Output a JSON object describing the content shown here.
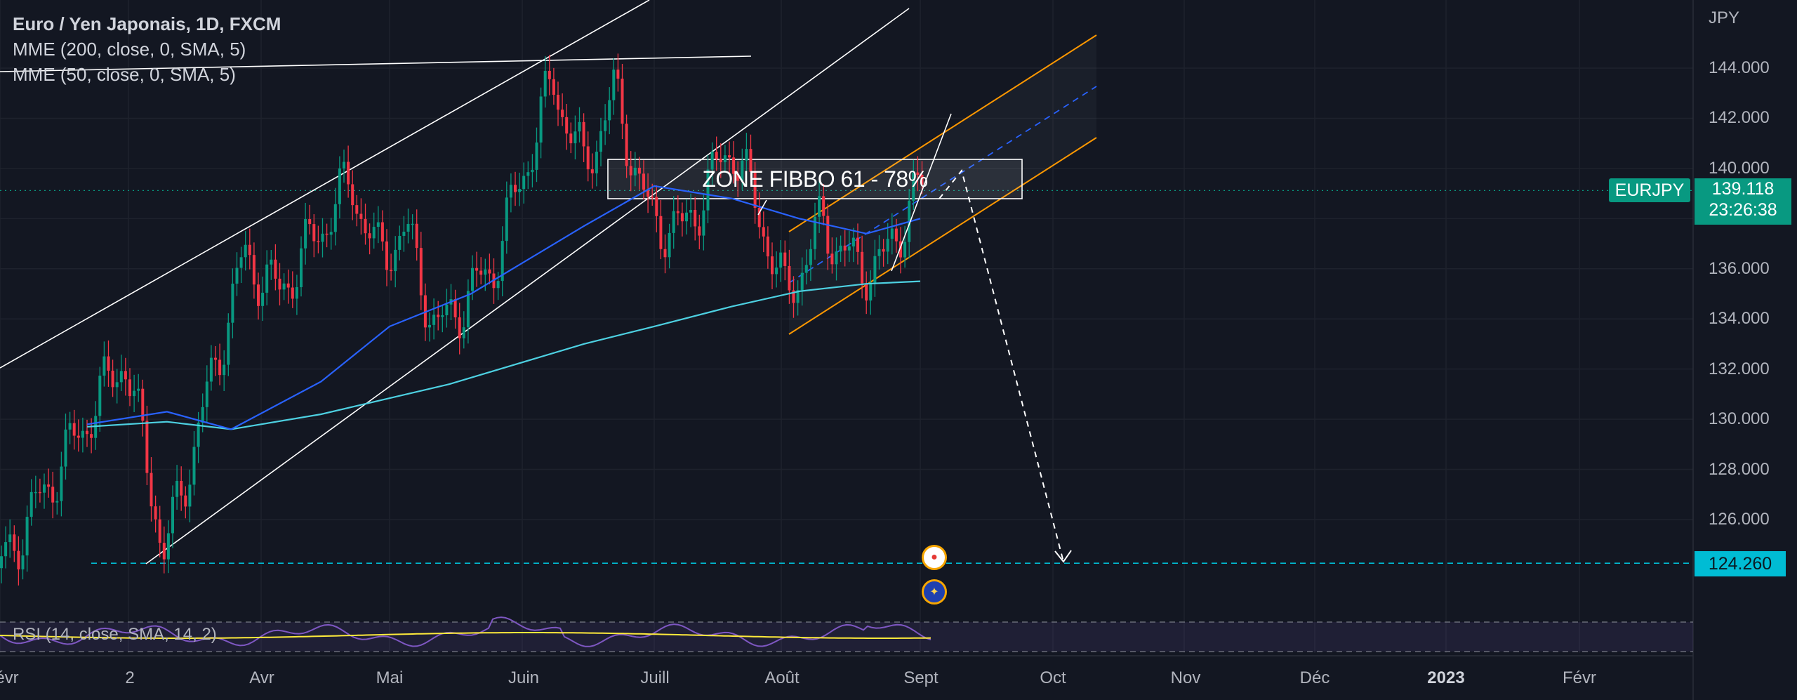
{
  "header": {
    "title": "Euro / Yen Japonais, 1D, FXCM",
    "indicators": [
      "MME (200, close, 0, SMA, 5)",
      "MME (50, close, 0, SMA, 5)"
    ]
  },
  "axis": {
    "unit": "JPY",
    "price_ticks": [
      "144.000",
      "142.000",
      "140.000",
      "138.000",
      "136.000",
      "134.000",
      "132.000",
      "130.000",
      "128.000",
      "126.000"
    ],
    "time_ticks": [
      {
        "label": "évr",
        "bold": false
      },
      {
        "label": "2",
        "bold": false
      },
      {
        "label": "Avr",
        "bold": false
      },
      {
        "label": "Mai",
        "bold": false
      },
      {
        "label": "Juin",
        "bold": false
      },
      {
        "label": "Juill",
        "bold": false
      },
      {
        "label": "Août",
        "bold": false
      },
      {
        "label": "Sept",
        "bold": false
      },
      {
        "label": "Oct",
        "bold": false
      },
      {
        "label": "Nov",
        "bold": false
      },
      {
        "label": "Déc",
        "bold": false
      },
      {
        "label": "2023",
        "bold": true
      },
      {
        "label": "Févr",
        "bold": false
      }
    ]
  },
  "badges": {
    "symbol": "EURJPY",
    "last_price": "139.118",
    "countdown": "23:26:38",
    "target": "124.260"
  },
  "annotation": {
    "zone_text": "ZONE FIBBO 61 - 78%"
  },
  "rsi": {
    "label": "RSI (14, close, SMA, 14, 2)"
  },
  "colors": {
    "background": "#131722",
    "up": "#089981",
    "down": "#f23645",
    "ema50": "#2962ff",
    "ema200": "#4dd0e1",
    "channel": "#ff9800",
    "rsi_line": "#7e57c2",
    "rsi_ma": "#ffeb3b",
    "target": "#00bcd4"
  },
  "chart_data": {
    "type": "line",
    "title": "Euro / Yen Japonais, 1D, FXCM",
    "ylabel": "JPY",
    "ylim": [
      123.5,
      146
    ],
    "last_price": 139.118,
    "target_level": 124.26,
    "zone": {
      "label": "ZONE FIBBO 61 - 78%",
      "from": 138.3,
      "to": 139.9
    },
    "series": [
      {
        "name": "MME (200, close, 0, SMA, 5)",
        "points": [
          [
            "2022-02-20",
            129.7
          ],
          [
            "2022-03-10",
            129.9
          ],
          [
            "2022-03-25",
            129.6
          ],
          [
            "2022-04-15",
            130.2
          ],
          [
            "2022-05-15",
            131.4
          ],
          [
            "2022-06-15",
            133.0
          ],
          [
            "2022-07-01",
            133.7
          ],
          [
            "2022-07-20",
            134.5
          ],
          [
            "2022-08-05",
            135.1
          ],
          [
            "2022-08-20",
            135.4
          ],
          [
            "2022-09-01",
            135.5
          ]
        ]
      },
      {
        "name": "MME (50, close, 0, SMA, 5)",
        "points": [
          [
            "2022-02-20",
            129.8
          ],
          [
            "2022-03-10",
            130.3
          ],
          [
            "2022-03-25",
            129.6
          ],
          [
            "2022-04-15",
            131.5
          ],
          [
            "2022-05-01",
            133.7
          ],
          [
            "2022-05-20",
            135.0
          ],
          [
            "2022-06-15",
            137.7
          ],
          [
            "2022-07-01",
            139.3
          ],
          [
            "2022-07-20",
            138.8
          ],
          [
            "2022-08-05",
            138.0
          ],
          [
            "2022-08-20",
            137.4
          ],
          [
            "2022-09-01",
            138.0
          ]
        ]
      }
    ],
    "ohlc_approx": [
      [
        "2022-02-20",
        130.0
      ],
      [
        "2022-02-28",
        132.5
      ],
      [
        "2022-03-07",
        127.0
      ],
      [
        "2022-03-09",
        124.4
      ],
      [
        "2022-03-18",
        130.0
      ],
      [
        "2022-03-28",
        136.5
      ],
      [
        "2022-04-05",
        135.0
      ],
      [
        "2022-04-22",
        139.5
      ],
      [
        "2022-04-28",
        136.5
      ],
      [
        "2022-05-05",
        137.5
      ],
      [
        "2022-05-12",
        133.5
      ],
      [
        "2022-05-25",
        136.0
      ],
      [
        "2022-06-08",
        143.5
      ],
      [
        "2022-06-15",
        140.0
      ],
      [
        "2022-06-22",
        143.0
      ],
      [
        "2022-06-30",
        138.0
      ],
      [
        "2022-07-08",
        137.5
      ],
      [
        "2022-07-20",
        141.0
      ],
      [
        "2022-07-28",
        137.5
      ],
      [
        "2022-08-02",
        134.8
      ],
      [
        "2022-08-10",
        137.8
      ],
      [
        "2022-08-18",
        136.0
      ],
      [
        "2022-08-24",
        136.3
      ],
      [
        "2022-08-31",
        139.1
      ]
    ],
    "rsi": {
      "name": "RSI (14, close, SMA, 14, 2)"
    }
  }
}
